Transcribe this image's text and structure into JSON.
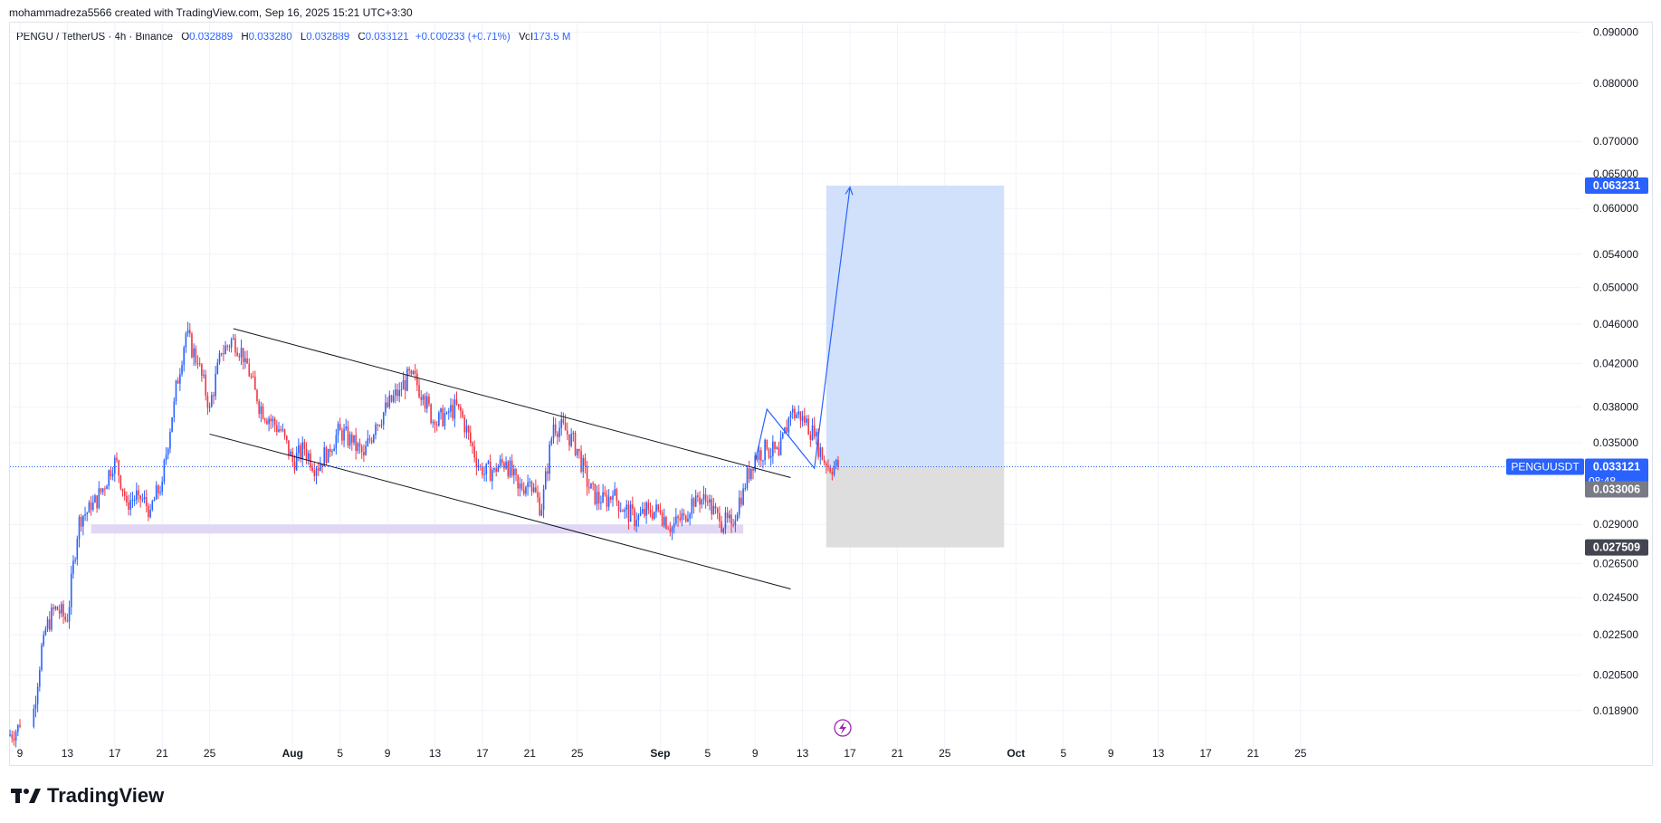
{
  "header": {
    "credit": "mohammadreza5566 created with TradingView.com, Sep 16, 2025 15:21 UTC+3:30"
  },
  "legend": {
    "symbol": "PENGU / TetherUS · 4h · Binance",
    "o_label": "O",
    "o": "0.032889",
    "h_label": "H",
    "h": "0.033280",
    "l_label": "L",
    "l": "0.032889",
    "c_label": "C",
    "c": "0.033121",
    "change": "+0.000233 (+0.71%)",
    "vol_label": "Vol",
    "vol": "173.5 M"
  },
  "brand": {
    "name": "TradingView"
  },
  "chart_data": {
    "type": "candlestick",
    "symbol": "PENGUUSDT",
    "interval": "4h",
    "y_scale": "log",
    "ylim": [
      0.0172,
      0.092
    ],
    "y_ticks": [
      "0.090000",
      "0.080000",
      "0.070000",
      "0.065000",
      "0.060000",
      "0.054000",
      "0.050000",
      "0.046000",
      "0.042000",
      "0.038000",
      "0.035000",
      "0.029000",
      "0.026500",
      "0.024500",
      "0.022500",
      "0.020500",
      "0.018900"
    ],
    "x_ticks": [
      "9",
      "13",
      "17",
      "21",
      "25",
      "Aug",
      "5",
      "9",
      "13",
      "17",
      "21",
      "25",
      "Sep",
      "5",
      "9",
      "13",
      "17",
      "21",
      "25",
      "Oct",
      "5",
      "9",
      "13",
      "17",
      "21",
      "25"
    ],
    "x_range": [
      "2025-07-09",
      "2025-10-25"
    ],
    "candle_path_daily_closes": [
      {
        "date": "2025-07-09",
        "close": 0.0182
      },
      {
        "date": "2025-07-11",
        "close": 0.0225
      },
      {
        "date": "2025-07-12",
        "close": 0.024
      },
      {
        "date": "2025-07-13",
        "close": 0.0232
      },
      {
        "date": "2025-07-14",
        "close": 0.0295
      },
      {
        "date": "2025-07-15",
        "close": 0.03
      },
      {
        "date": "2025-07-16",
        "close": 0.0315
      },
      {
        "date": "2025-07-17",
        "close": 0.0338
      },
      {
        "date": "2025-07-18",
        "close": 0.0305
      },
      {
        "date": "2025-07-19",
        "close": 0.031
      },
      {
        "date": "2025-07-20",
        "close": 0.03
      },
      {
        "date": "2025-07-21",
        "close": 0.032
      },
      {
        "date": "2025-07-22",
        "close": 0.0385
      },
      {
        "date": "2025-07-23",
        "close": 0.045
      },
      {
        "date": "2025-07-24",
        "close": 0.042
      },
      {
        "date": "2025-07-25",
        "close": 0.038
      },
      {
        "date": "2025-07-26",
        "close": 0.043
      },
      {
        "date": "2025-07-27",
        "close": 0.0445
      },
      {
        "date": "2025-07-28",
        "close": 0.0425
      },
      {
        "date": "2025-07-29",
        "close": 0.0385
      },
      {
        "date": "2025-07-30",
        "close": 0.037
      },
      {
        "date": "2025-07-31",
        "close": 0.036
      },
      {
        "date": "2025-08-01",
        "close": 0.0335
      },
      {
        "date": "2025-08-02",
        "close": 0.0345
      },
      {
        "date": "2025-08-03",
        "close": 0.033
      },
      {
        "date": "2025-08-04",
        "close": 0.0345
      },
      {
        "date": "2025-08-05",
        "close": 0.036
      },
      {
        "date": "2025-08-06",
        "close": 0.035
      },
      {
        "date": "2025-08-07",
        "close": 0.034
      },
      {
        "date": "2025-08-08",
        "close": 0.0365
      },
      {
        "date": "2025-08-09",
        "close": 0.038
      },
      {
        "date": "2025-08-10",
        "close": 0.0395
      },
      {
        "date": "2025-08-11",
        "close": 0.041
      },
      {
        "date": "2025-08-12",
        "close": 0.039
      },
      {
        "date": "2025-08-13",
        "close": 0.0365
      },
      {
        "date": "2025-08-14",
        "close": 0.0375
      },
      {
        "date": "2025-08-15",
        "close": 0.038
      },
      {
        "date": "2025-08-16",
        "close": 0.035
      },
      {
        "date": "2025-08-17",
        "close": 0.0325
      },
      {
        "date": "2025-08-18",
        "close": 0.033
      },
      {
        "date": "2025-08-19",
        "close": 0.0335
      },
      {
        "date": "2025-08-20",
        "close": 0.0315
      },
      {
        "date": "2025-08-21",
        "close": 0.032
      },
      {
        "date": "2025-08-22",
        "close": 0.03
      },
      {
        "date": "2025-08-23",
        "close": 0.0365
      },
      {
        "date": "2025-08-24",
        "close": 0.036
      },
      {
        "date": "2025-08-25",
        "close": 0.0345
      },
      {
        "date": "2025-08-26",
        "close": 0.0315
      },
      {
        "date": "2025-08-27",
        "close": 0.0305
      },
      {
        "date": "2025-08-28",
        "close": 0.031
      },
      {
        "date": "2025-08-29",
        "close": 0.03
      },
      {
        "date": "2025-08-30",
        "close": 0.0293
      },
      {
        "date": "2025-08-31",
        "close": 0.03
      },
      {
        "date": "2025-09-01",
        "close": 0.0298
      },
      {
        "date": "2025-09-02",
        "close": 0.0288
      },
      {
        "date": "2025-09-03",
        "close": 0.0296
      },
      {
        "date": "2025-09-04",
        "close": 0.031
      },
      {
        "date": "2025-09-05",
        "close": 0.0305
      },
      {
        "date": "2025-09-06",
        "close": 0.0292
      },
      {
        "date": "2025-09-07",
        "close": 0.029
      },
      {
        "date": "2025-09-08",
        "close": 0.0315
      },
      {
        "date": "2025-09-09",
        "close": 0.034
      },
      {
        "date": "2025-09-10",
        "close": 0.0345
      },
      {
        "date": "2025-09-11",
        "close": 0.034
      },
      {
        "date": "2025-09-12",
        "close": 0.0375
      },
      {
        "date": "2025-09-13",
        "close": 0.0372
      },
      {
        "date": "2025-09-14",
        "close": 0.0355
      },
      {
        "date": "2025-09-15",
        "close": 0.0332
      },
      {
        "date": "2025-09-16",
        "close": 0.033121
      }
    ],
    "price_labels": [
      {
        "label": "",
        "value": "0.063231",
        "color": "#2962ff"
      },
      {
        "label": "PENGUUSDT",
        "value": "0.033121",
        "sub": "08:48",
        "color": "#2962ff"
      },
      {
        "label": "",
        "value": "0.033006",
        "color": "#787b86"
      },
      {
        "label": "",
        "value": "0.027509",
        "color": "#434651"
      }
    ],
    "drawings": {
      "descending_channel_upper": [
        {
          "date": "2025-07-27",
          "price": 0.0455
        },
        {
          "date": "2025-09-12",
          "price": 0.0323
        }
      ],
      "descending_channel_lower": [
        {
          "date": "2025-07-25",
          "price": 0.0357
        },
        {
          "date": "2025-09-12",
          "price": 0.025
        }
      ],
      "support_zone": {
        "from": "2025-07-15",
        "to": "2025-09-08",
        "low": 0.0284,
        "high": 0.029,
        "color": "#e1d7f5"
      },
      "long_position": {
        "from": "2025-09-15",
        "to": "2025-09-30",
        "entry": 0.033121,
        "target": 0.063231,
        "stop": 0.027509
      },
      "projection_path": [
        {
          "date": "2025-09-09",
          "price": 0.0335
        },
        {
          "date": "2025-09-10",
          "price": 0.0378
        },
        {
          "date": "2025-09-14",
          "price": 0.033
        },
        {
          "date": "2025-09-17",
          "price": 0.063
        }
      ]
    },
    "colors": {
      "up": "#2962ff",
      "down": "#f23645",
      "grid": "#f0f3fa",
      "target": "#d1e0fb",
      "stop": "#dedede"
    }
  }
}
